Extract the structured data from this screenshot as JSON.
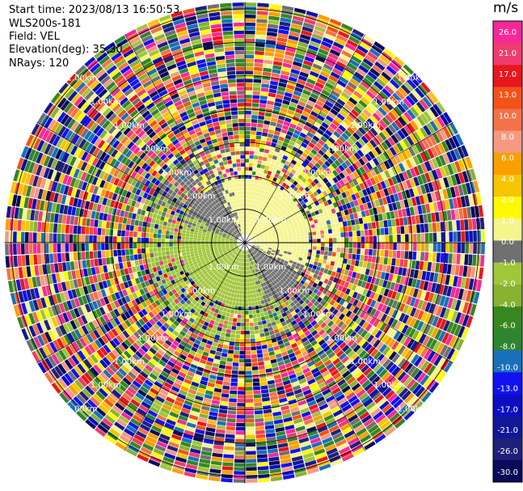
{
  "header": {
    "start_time": "Start time: 2023/08/13 16:50:53",
    "instrument": "WLS200s-181",
    "field": "Field: VEL",
    "elevation": "Elevation(deg): 35.30",
    "nrays": "NRays: 120"
  },
  "chart_data": {
    "type": "heatmap",
    "projection": "polar-ppi",
    "field": "VEL",
    "units": "m/s",
    "nrays": 120,
    "elevation_deg": 35.3,
    "range_rings_km": [
      1.0,
      2.0,
      3.0,
      4.0,
      5.0,
      6.0,
      7.0
    ],
    "ring_label": "1.00km",
    "max_range_km": 7.2,
    "colorbar": {
      "title": "m/s",
      "ticks": [
        "26.0",
        "21.0",
        "17.0",
        "13.0",
        "10.0",
        "8.0",
        "6.0",
        "4.0",
        "2.0",
        "1.0",
        "0.0",
        "-1.0",
        "-2.0",
        "-4.0",
        "-6.0",
        "-8.0",
        "-10.0",
        "-13.0",
        "-17.0",
        "-21.0",
        "-26.0",
        "-30.0"
      ],
      "colors": [
        "#f7289a",
        "#f03c6e",
        "#e8161d",
        "#f25218",
        "#f47248",
        "#f59a80",
        "#fa9f00",
        "#f7c400",
        "#fff900",
        "#f4f58c",
        "#707070",
        "#a0c63a",
        "#86b331",
        "#38871e",
        "#2e852e",
        "#1a6fba",
        "#1212f1",
        "#0d0dc4",
        "#111896",
        "#20207a",
        "#0a0a5a"
      ],
      "vmin": -30.0,
      "vmax": 30.0
    },
    "wind_pattern": {
      "approaching_side": "south-west",
      "receding_side": "north-east",
      "clean_range_km": 1.9,
      "noise_beyond_km": 3.0
    }
  }
}
